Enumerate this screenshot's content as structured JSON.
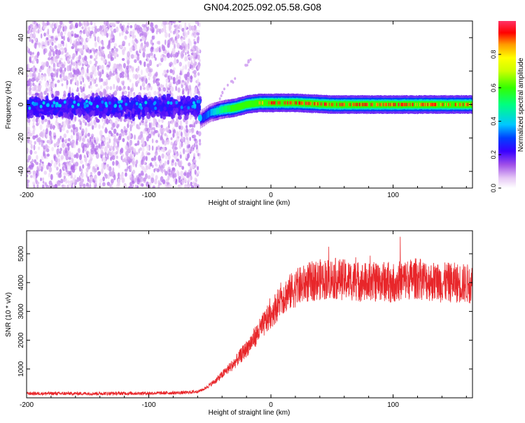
{
  "title": "GN04.2025.092.05.58.G08",
  "chart_data": [
    {
      "type": "heatmap",
      "xlabel": "Height of straight line (km)",
      "ylabel": "Frequency (Hz)",
      "xlim": [
        -200,
        165
      ],
      "ylim": [
        -50,
        50
      ],
      "x_ticks": [
        -200,
        -100,
        0,
        100
      ],
      "y_ticks": [
        -40,
        -20,
        0,
        20,
        40
      ],
      "grid": false,
      "colorbar": {
        "label": "Normalized spectral amplitude",
        "range": [
          0,
          1
        ],
        "ticks": [
          "0.0",
          "0.2",
          "0.4",
          "0.6",
          "0.8"
        ],
        "colormap": [
          "#ffffff",
          "#e6c8f5",
          "#a050e8",
          "#6a00e6",
          "#0000ff",
          "#00c8ff",
          "#00ff80",
          "#33ff00",
          "#ccff00",
          "#ffff00",
          "#ff9900",
          "#ff0000",
          "#ff3366"
        ]
      },
      "noise_region": {
        "x": [
          -200,
          -58
        ],
        "freq_spread": [
          -50,
          50
        ],
        "core_spread": [
          -15,
          12
        ]
      },
      "signal_track": {
        "x": [
          -58,
          -50,
          -40,
          -30,
          -20,
          -10,
          0,
          20,
          50,
          100,
          165
        ],
        "freq": [
          -9,
          -5,
          -3,
          -2,
          0,
          1,
          1,
          1,
          0,
          0,
          0
        ],
        "amplitude": [
          0.25,
          0.35,
          0.5,
          0.6,
          0.7,
          0.8,
          0.9,
          0.9,
          0.9,
          0.9,
          0.85
        ]
      }
    },
    {
      "type": "line",
      "xlabel": "Height of straight line (km)",
      "ylabel": "SNR (10 * v/v)",
      "xlim": [
        -200,
        165
      ],
      "ylim": [
        0,
        5800
      ],
      "x_ticks": [
        -200,
        -100,
        0,
        100
      ],
      "y_ticks": [
        1000,
        2000,
        3000,
        4000,
        5000
      ],
      "grid": false,
      "series": [
        {
          "color": "#e8262a",
          "x": [
            -200,
            -150,
            -100,
            -70,
            -60,
            -55,
            -50,
            -45,
            -40,
            -35,
            -30,
            -25,
            -20,
            -15,
            -10,
            -5,
            0,
            5,
            10,
            20,
            30,
            40,
            50,
            60,
            70,
            80,
            90,
            100,
            110,
            120,
            130,
            140,
            150,
            165
          ],
          "values": [
            150,
            150,
            160,
            180,
            220,
            300,
            450,
            600,
            800,
            1000,
            1200,
            1450,
            1700,
            2000,
            2300,
            2600,
            2900,
            3200,
            3500,
            3800,
            4000,
            4100,
            4150,
            4100,
            4050,
            4000,
            4050,
            4000,
            4100,
            4150,
            4050,
            4000,
            4000,
            3950
          ]
        }
      ]
    }
  ]
}
